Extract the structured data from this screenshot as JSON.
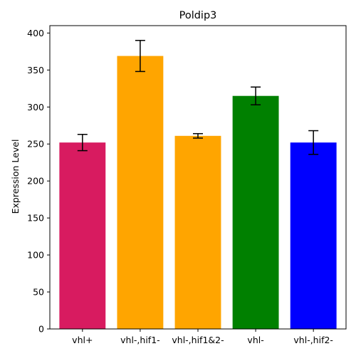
{
  "chart_data": {
    "type": "bar",
    "title": "Poldip3",
    "xlabel": "",
    "ylabel": "Expression Level",
    "categories": [
      "vhl+",
      "vhl-,hif1-",
      "vhl-,hif1&2-",
      "vhl-",
      "vhl-,hif2-"
    ],
    "values": [
      252,
      369,
      261,
      315,
      252
    ],
    "errors": [
      11,
      21,
      3,
      12,
      16
    ],
    "colors": [
      "#D81B60",
      "#FFA500",
      "#FFA500",
      "#008000",
      "#0000FF"
    ],
    "ylim": [
      0,
      410
    ],
    "yticks": [
      0,
      50,
      100,
      150,
      200,
      250,
      300,
      350,
      400
    ],
    "grid": false,
    "legend": "none"
  }
}
